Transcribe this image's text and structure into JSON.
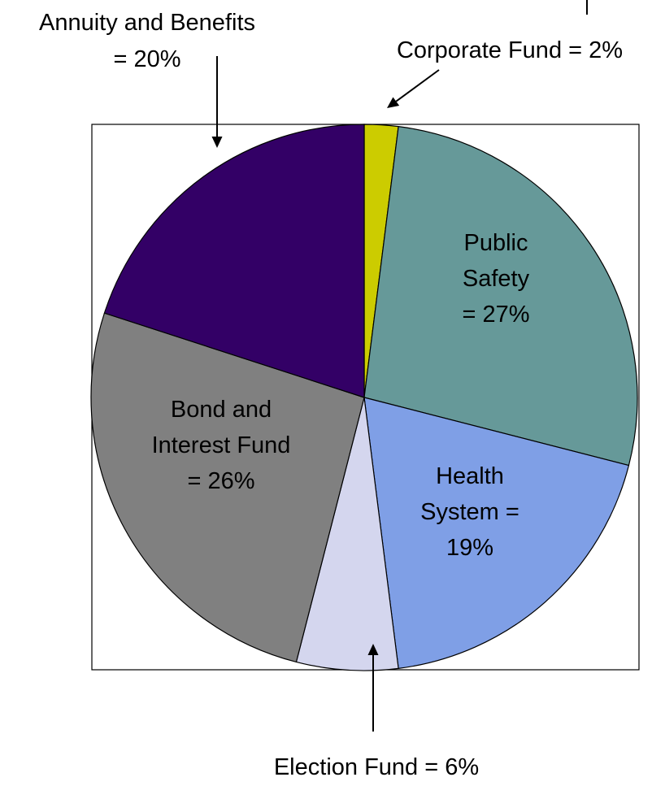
{
  "chart_data": {
    "type": "pie",
    "title": "",
    "slices": [
      {
        "label": "Corporate Fund",
        "value": 2,
        "color": "#cccc00",
        "label_lines": [
          "Corporate Fund = 2%"
        ]
      },
      {
        "label": "Public Safety",
        "value": 27,
        "color": "#669999",
        "label_lines": [
          "Public",
          "Safety",
          "= 27%"
        ]
      },
      {
        "label": "Health System",
        "value": 19,
        "color": "#7f9fe6",
        "label_lines": [
          "Health",
          "System =",
          "19%"
        ]
      },
      {
        "label": "Election Fund",
        "value": 6,
        "color": "#d4d6ee",
        "label_lines": [
          "Election Fund = 6%"
        ]
      },
      {
        "label": "Bond and Interest Fund",
        "value": 26,
        "color": "#808080",
        "label_lines": [
          "Bond and",
          "Interest Fund",
          "= 26%"
        ]
      },
      {
        "label": "Annuity and Benefits",
        "value": 20,
        "color": "#330066",
        "label_lines": [
          "Annuity and Benefits",
          "= 20%"
        ]
      }
    ],
    "legend": "none",
    "labels": "callouts"
  }
}
